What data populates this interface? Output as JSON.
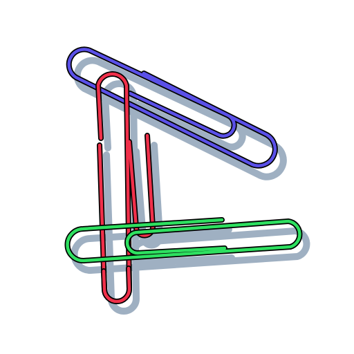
{
  "scene": {
    "background": "#ffffff",
    "shadow_color": "#8fa3b8",
    "outline_color": "#000000",
    "clips": [
      {
        "name": "blue-paperclip",
        "icon": "paperclip-icon",
        "color": "#5a50e8"
      },
      {
        "name": "red-paperclip",
        "icon": "paperclip-icon",
        "color": "#f0304a"
      },
      {
        "name": "green-paperclip",
        "icon": "paperclip-icon",
        "color": "#2ee060"
      }
    ]
  }
}
